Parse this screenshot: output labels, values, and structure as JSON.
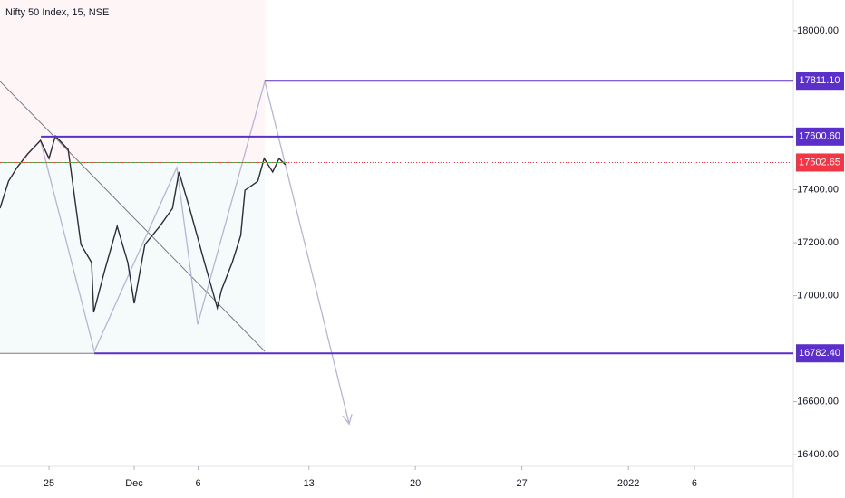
{
  "chart_data": {
    "type": "line",
    "title": "Nifty 50 Index, 15, NSE",
    "color": "#2a2e39",
    "x": [
      -2.3,
      -1.9,
      -1.5,
      -1.0,
      -0.4,
      0.0,
      0.3,
      0.9,
      1.1,
      1.5,
      2.0,
      2.1,
      2.6,
      3.2,
      3.7,
      4.0,
      4.5,
      5.2,
      5.8,
      6.1,
      6.6,
      7.3,
      7.9,
      8.1,
      8.6,
      9.0,
      9.2,
      9.8,
      10.1,
      10.5,
      10.8,
      11.1
    ],
    "values": [
      17330,
      17432,
      17484,
      17535,
      17586,
      17518,
      17603,
      17552,
      17432,
      17193,
      17125,
      16937,
      17091,
      17262,
      17125,
      16971,
      17193,
      17262,
      17330,
      17467,
      17330,
      17125,
      16954,
      17022,
      17125,
      17227,
      17398,
      17432,
      17518,
      17467,
      17518,
      17494
    ],
    "xlim": [
      -2.3,
      34.94
    ],
    "ylim": [
      16356,
      18116
    ],
    "xticks": [
      {
        "value": 0,
        "label": "25"
      },
      {
        "value": 4,
        "label": "Dec"
      },
      {
        "value": 7,
        "label": "6"
      },
      {
        "value": 12.2,
        "label": "13"
      },
      {
        "value": 17.2,
        "label": "20"
      },
      {
        "value": 22.2,
        "label": "27"
      },
      {
        "value": 27.2,
        "label": "2022"
      },
      {
        "value": 30.3,
        "label": "6"
      }
    ],
    "yticks": [
      {
        "value": 18000,
        "label": "18000.00"
      },
      {
        "value": 17400,
        "label": "17400.00"
      },
      {
        "value": 17200,
        "label": "17200.00"
      },
      {
        "value": 17000,
        "label": "17000.00"
      },
      {
        "value": 16600,
        "label": "16600.00"
      },
      {
        "value": 16400,
        "label": "16400.00"
      }
    ],
    "levels": [
      {
        "value": 17811.1,
        "label": "17811.10",
        "start": 10.13,
        "color": "#5b2fc9"
      },
      {
        "value": 17600.6,
        "label": "17600.60",
        "start": -0.38,
        "color": "#5b2fc9"
      },
      {
        "value": 16782.4,
        "label": "16782.40",
        "start": 2.13,
        "color": "#5b2fc9"
      }
    ],
    "current": {
      "value": 17502.65,
      "label": "17502.65",
      "color": "#f23645"
    },
    "projection": {
      "x": [
        -0.4,
        2.13,
        6.0,
        6.98,
        10.13,
        14.09
      ],
      "values": [
        17586,
        16790,
        17484,
        16892,
        17809,
        16516
      ],
      "color": "#b7b4d8"
    },
    "trendline": {
      "x": [
        -2.3,
        10.13
      ],
      "values": [
        17809,
        16790
      ],
      "color": "#787b86"
    }
  }
}
